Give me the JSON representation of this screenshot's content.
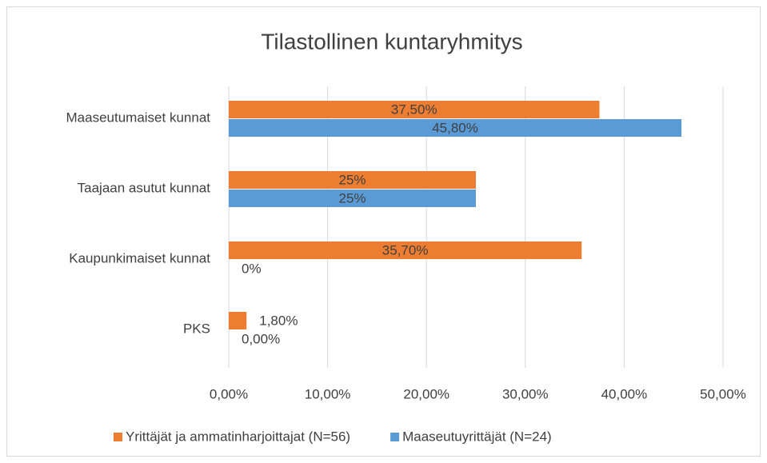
{
  "chart_data": {
    "type": "barh",
    "title": "Tilastollinen kuntaryhmitys",
    "categories": [
      "Maaseutumaiset kunnat",
      "Taajaan asutut kunnat",
      "Kaupunkimaiset kunnat",
      "PKS"
    ],
    "series": [
      {
        "name": "Yrittäjät ja ammatinharjoittajat (N=56)",
        "color": "#ED7D31",
        "values": [
          37.5,
          25,
          35.7,
          1.8
        ],
        "value_labels": [
          "37,50%",
          "25%",
          "35,70%",
          "1,80%"
        ]
      },
      {
        "name": "Maaseutuyrittäjät (N=24)",
        "color": "#5B9BD5",
        "values": [
          45.8,
          25,
          0,
          0
        ],
        "value_labels": [
          "45,80%",
          "25%",
          "0%",
          "0,00%"
        ]
      }
    ],
    "xlim": [
      0,
      50
    ],
    "xticks": [
      {
        "value": 0,
        "label": "0,00%"
      },
      {
        "value": 10,
        "label": "10,00%"
      },
      {
        "value": 20,
        "label": "20,00%"
      },
      {
        "value": 30,
        "label": "30,00%"
      },
      {
        "value": 40,
        "label": "40,00%"
      },
      {
        "value": 50,
        "label": "50,00%"
      }
    ],
    "grid": true,
    "legend": "bottom"
  }
}
